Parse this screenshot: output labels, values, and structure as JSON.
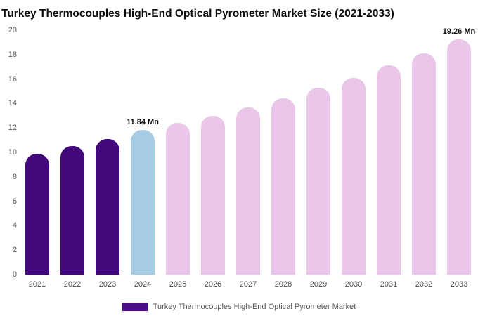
{
  "title": "Turkey Thermocouples High-End Optical Pyrometer Market Size (2021-2033)",
  "chart_data": {
    "type": "bar",
    "title": "Turkey Thermocouples High-End Optical Pyrometer Market Size (2021-2033)",
    "categories": [
      "2021",
      "2022",
      "2023",
      "2024",
      "2025",
      "2026",
      "2027",
      "2028",
      "2029",
      "2030",
      "2031",
      "2032",
      "2033"
    ],
    "values": [
      9.9,
      10.5,
      11.1,
      11.84,
      12.4,
      13.0,
      13.7,
      14.4,
      15.3,
      16.1,
      17.1,
      18.1,
      19.26
    ],
    "unit": "Mn",
    "ylim": [
      0,
      20
    ],
    "ytick_step": 2,
    "grid": false,
    "legend_position": "bottom",
    "colors": {
      "past": "#42077B",
      "highlight": "#A6CBE4",
      "forecast": "#EAC7EA",
      "legend_swatch": "#4B0D85"
    },
    "color_roles": [
      "past",
      "past",
      "past",
      "highlight",
      "forecast",
      "forecast",
      "forecast",
      "forecast",
      "forecast",
      "forecast",
      "forecast",
      "forecast",
      "forecast"
    ],
    "annotations": [
      {
        "index": 3,
        "text": "11.84 Mn"
      },
      {
        "index": 12,
        "text": "19.26 Mn"
      }
    ],
    "legend": [
      {
        "label": "Turkey Thermocouples High-End Optical Pyrometer Market"
      }
    ]
  }
}
